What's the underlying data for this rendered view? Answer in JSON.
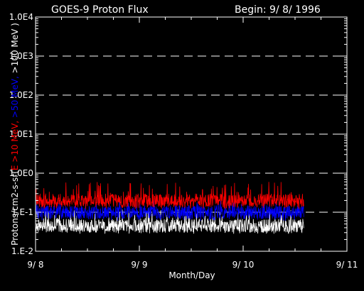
{
  "header": {
    "title": "GOES-9 Proton Flux",
    "begin": "Begin: 9/ 8/ 1996"
  },
  "chart_data": {
    "type": "line",
    "title": "GOES-9 Proton Flux",
    "xlabel": "Month/Day",
    "ylabel_parts": [
      {
        "text": "Protons/cm2-s-sr(",
        "color": "#ffffff"
      },
      {
        "text": "E >10 MeV, ",
        "color": "#ff0000"
      },
      {
        "text": ">50 MeV, ",
        "color": "#0000ff"
      },
      {
        "text": ">100 MeV )",
        "color": "#ffffff"
      }
    ],
    "y_scale": "log",
    "ylim": [
      0.01,
      10000
    ],
    "xlim_days": [
      "9/ 8",
      "9/ 11"
    ],
    "x_ticks": [
      "9/ 8",
      "9/ 9",
      "9/ 10",
      "9/ 11"
    ],
    "y_ticks": [
      "1.E-2",
      "1.E-1",
      "1.0E0",
      "1.0E1",
      "1.0E2",
      "1.0E3",
      "1.0E4"
    ],
    "grid": "dashed horizontal at each decade",
    "data_end": "9/ 10 ~14:00",
    "series": [
      {
        "name": ">10 MeV",
        "color": "#ff0000",
        "typical": 0.2,
        "range": [
          0.12,
          0.6
        ]
      },
      {
        "name": ">50 MeV",
        "color": "#0000ff",
        "typical": 0.1,
        "range": [
          0.06,
          0.2
        ]
      },
      {
        "name": ">100 MeV",
        "color": "#ffffff",
        "typical": 0.045,
        "range": [
          0.028,
          0.12
        ]
      }
    ]
  }
}
